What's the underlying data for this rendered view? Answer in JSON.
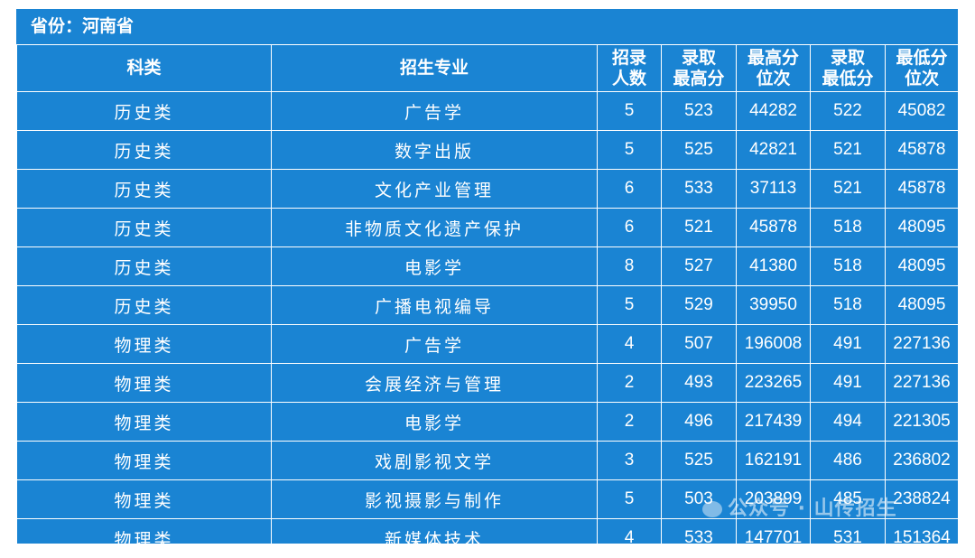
{
  "province_label": "省份：河南省",
  "headers": {
    "category": "科类",
    "major": "招生专业",
    "enrolled": [
      "招录",
      "人数"
    ],
    "max_score": [
      "录取",
      "最高分"
    ],
    "max_rank": [
      "最高分",
      "位次"
    ],
    "min_score": [
      "录取",
      "最低分"
    ],
    "min_rank": [
      "最低分",
      "位次"
    ]
  },
  "rows": [
    {
      "category": "历史类",
      "major": "广告学",
      "enrolled": "5",
      "max_score": "523",
      "max_rank": "44282",
      "min_score": "522",
      "min_rank": "45082"
    },
    {
      "category": "历史类",
      "major": "数字出版",
      "enrolled": "5",
      "max_score": "525",
      "max_rank": "42821",
      "min_score": "521",
      "min_rank": "45878"
    },
    {
      "category": "历史类",
      "major": "文化产业管理",
      "enrolled": "6",
      "max_score": "533",
      "max_rank": "37113",
      "min_score": "521",
      "min_rank": "45878"
    },
    {
      "category": "历史类",
      "major": "非物质文化遗产保护",
      "enrolled": "6",
      "max_score": "521",
      "max_rank": "45878",
      "min_score": "518",
      "min_rank": "48095"
    },
    {
      "category": "历史类",
      "major": "电影学",
      "enrolled": "8",
      "max_score": "527",
      "max_rank": "41380",
      "min_score": "518",
      "min_rank": "48095"
    },
    {
      "category": "历史类",
      "major": "广播电视编导",
      "enrolled": "5",
      "max_score": "529",
      "max_rank": "39950",
      "min_score": "518",
      "min_rank": "48095"
    },
    {
      "category": "物理类",
      "major": "广告学",
      "enrolled": "4",
      "max_score": "507",
      "max_rank": "196008",
      "min_score": "491",
      "min_rank": "227136"
    },
    {
      "category": "物理类",
      "major": "会展经济与管理",
      "enrolled": "2",
      "max_score": "493",
      "max_rank": "223265",
      "min_score": "491",
      "min_rank": "227136"
    },
    {
      "category": "物理类",
      "major": "电影学",
      "enrolled": "2",
      "max_score": "496",
      "max_rank": "217439",
      "min_score": "494",
      "min_rank": "221305"
    },
    {
      "category": "物理类",
      "major": "戏剧影视文学",
      "enrolled": "3",
      "max_score": "525",
      "max_rank": "162191",
      "min_score": "486",
      "min_rank": "236802"
    },
    {
      "category": "物理类",
      "major": "影视摄影与制作",
      "enrolled": "5",
      "max_score": "503",
      "max_rank": "203899",
      "min_score": "485",
      "min_rank": "238824"
    },
    {
      "category": "物理类",
      "major": "新媒体技术",
      "enrolled": "4",
      "max_score": "533",
      "max_rank": "147701",
      "min_score": "531",
      "min_rank": "151364"
    }
  ],
  "watermark": "公众号 · 山传招生"
}
